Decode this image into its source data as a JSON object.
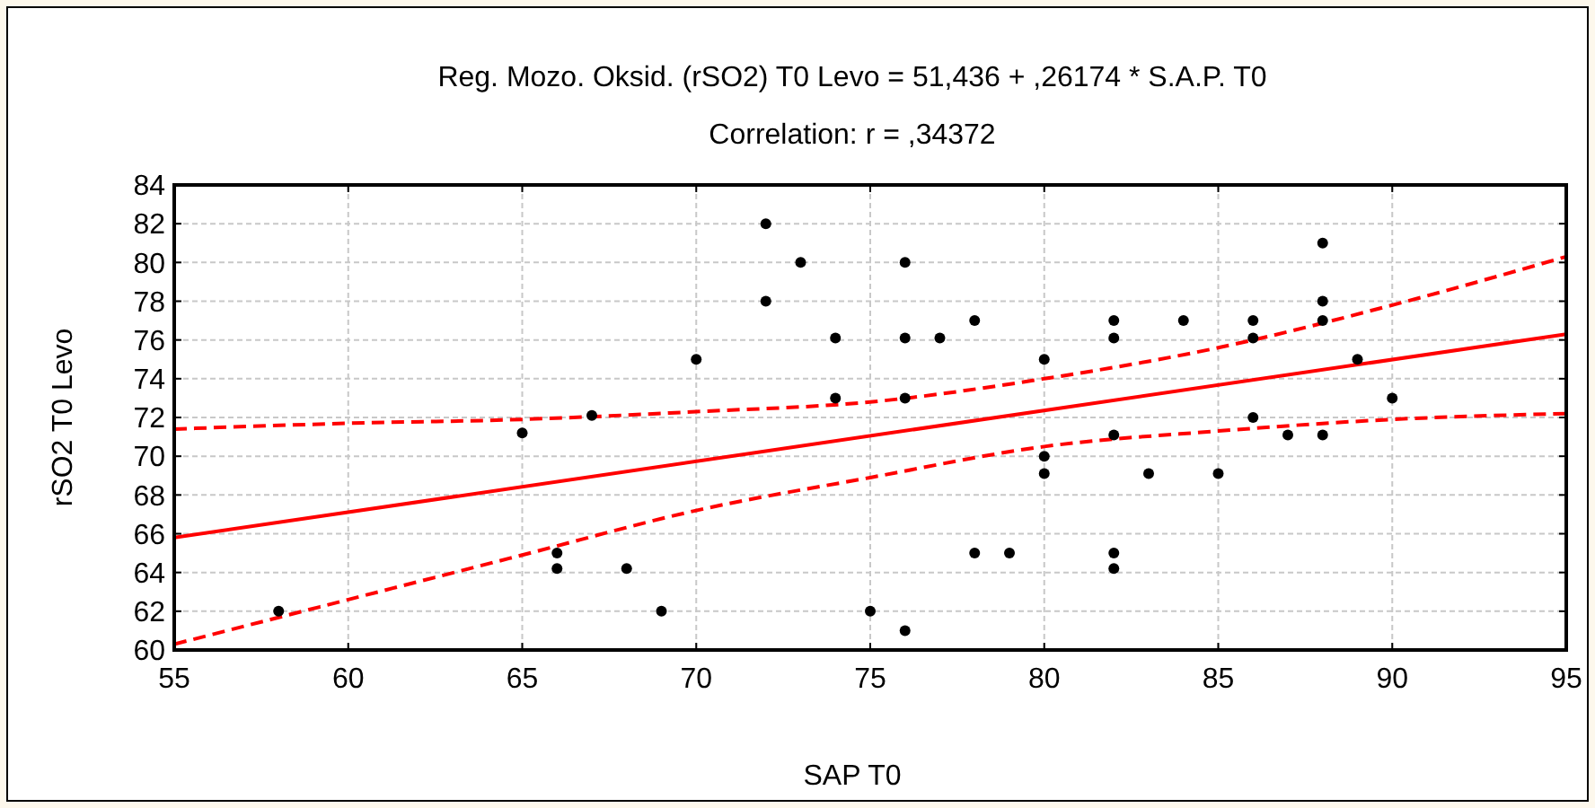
{
  "chart_data": {
    "type": "scatter",
    "title": "Reg. Mozo. Oksid. (rSO2)   T0  Levo = 51,436 + ,26174 * S.A.P.   T0",
    "subtitle": "Correlation: r = ,34372",
    "xlabel": "SAP  T0",
    "ylabel": "rSO2   T0  Levo",
    "xlim": [
      55,
      95
    ],
    "xticks": [
      55,
      60,
      65,
      70,
      75,
      80,
      85,
      90,
      95
    ],
    "ylim": [
      60,
      84
    ],
    "yticks": [
      60,
      62,
      64,
      66,
      68,
      70,
      72,
      74,
      76,
      78,
      80,
      82,
      84
    ],
    "grid": true,
    "series": [
      {
        "color": "#000000",
        "marker": "circle",
        "x": [
          58,
          65,
          66,
          66,
          67,
          68,
          69,
          70,
          72,
          72,
          73,
          74,
          74,
          75,
          76,
          76,
          76,
          76,
          77,
          78,
          78,
          79,
          80,
          80,
          80,
          82,
          82,
          82,
          82,
          82,
          83,
          84,
          85,
          86,
          86,
          86,
          87,
          88,
          88,
          88,
          88,
          89,
          90
        ],
        "values": [
          62,
          71.2,
          65,
          64.2,
          72.1,
          64.2,
          62,
          75,
          82,
          78,
          80,
          76.1,
          73,
          62,
          80,
          76.1,
          73,
          61,
          76.1,
          77,
          65,
          65,
          75,
          70,
          69.1,
          77,
          76.1,
          71.1,
          65,
          64.2,
          69.1,
          77,
          69.1,
          77,
          76.1,
          72,
          71.1,
          81,
          78,
          77,
          71.1,
          75,
          73
        ]
      },
      {
        "type": "line",
        "color": "#ff0000",
        "marker": "none",
        "line_style": "solid",
        "x": [
          55,
          95
        ],
        "values": [
          65.8,
          76.3
        ]
      },
      {
        "type": "line",
        "color": "#ff0000",
        "marker": "none",
        "line_style": "dashed",
        "x": [
          55,
          60,
          65,
          70,
          75,
          80,
          85,
          90,
          95
        ],
        "values": [
          71.4,
          71.7,
          71.9,
          72.3,
          72.8,
          74.0,
          75.6,
          77.8,
          80.3
        ]
      },
      {
        "type": "line",
        "color": "#ff0000",
        "marker": "none",
        "line_style": "dashed",
        "x": [
          55,
          60,
          65,
          70,
          75,
          80,
          85,
          90,
          95
        ],
        "values": [
          60.3,
          62.6,
          64.9,
          67.2,
          68.9,
          70.5,
          71.3,
          71.9,
          72.2
        ]
      }
    ]
  }
}
